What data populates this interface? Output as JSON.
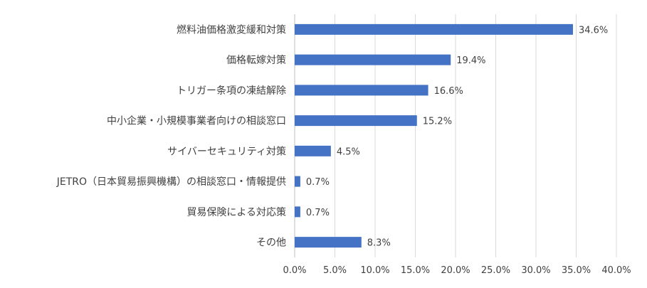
{
  "chart_data": {
    "type": "bar",
    "orientation": "horizontal",
    "categories": [
      "燃料油価格激変緩和対策",
      "価格転嫁対策",
      "トリガー条項の凍結解除",
      "中小企業・小規模事業者向けの相談窓口",
      "サイバーセキュリティ対策",
      "JETRO（日本貿易振興機構）の相談窓口・情報提供",
      "貿易保険による対応策",
      "その他"
    ],
    "values": [
      34.6,
      19.4,
      16.6,
      15.2,
      4.5,
      0.7,
      0.7,
      8.3
    ],
    "data_labels": [
      "34.6%",
      "19.4%",
      "16.6%",
      "15.2%",
      "4.5%",
      "0.7%",
      "0.7%",
      "8.3%"
    ],
    "xlim": [
      0,
      40
    ],
    "xticks": [
      0,
      5,
      10,
      15,
      20,
      25,
      30,
      35,
      40
    ],
    "xtick_labels": [
      "0.0%",
      "5.0%",
      "10.0%",
      "15.0%",
      "20.0%",
      "25.0%",
      "30.0%",
      "35.0%",
      "40.0%"
    ],
    "grid": true,
    "bar_color": "#4472c4"
  }
}
